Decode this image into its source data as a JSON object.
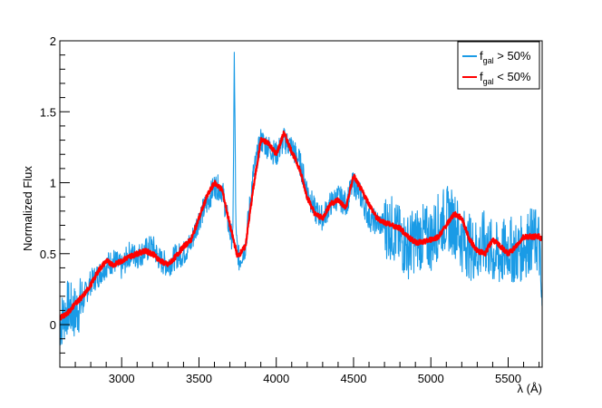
{
  "chart_data": {
    "type": "line",
    "xlabel": "λ (Å)",
    "ylabel": "Normalized Flux",
    "xlim": [
      2600,
      5720
    ],
    "ylim": [
      -0.3,
      2.0
    ],
    "x_ticks": [
      {
        "value": 3000,
        "label": "3000"
      },
      {
        "value": 3500,
        "label": "3500"
      },
      {
        "value": 4000,
        "label": "4000"
      },
      {
        "value": 4500,
        "label": "4500"
      },
      {
        "value": 5000,
        "label": "5000"
      },
      {
        "value": 5500,
        "label": "5500"
      }
    ],
    "y_ticks": [
      {
        "value": 0,
        "label": "0"
      },
      {
        "value": 0.5,
        "label": "0.5"
      },
      {
        "value": 1,
        "label": "1"
      },
      {
        "value": 1.5,
        "label": "1.5"
      },
      {
        "value": 2,
        "label": "2"
      }
    ],
    "grid": false,
    "legend_position": "top-right",
    "series": [
      {
        "label_main": "f",
        "label_sub": "gal",
        "label_rest": " > 50%",
        "color": "#1a9be6",
        "noise": 0.09,
        "x": [
          2600,
          2650,
          2700,
          2750,
          2800,
          2850,
          2900,
          2950,
          3000,
          3050,
          3100,
          3150,
          3200,
          3250,
          3300,
          3350,
          3400,
          3450,
          3500,
          3550,
          3600,
          3650,
          3700,
          3720,
          3728,
          3740,
          3760,
          3800,
          3850,
          3900,
          3950,
          4000,
          4050,
          4100,
          4150,
          4200,
          4250,
          4300,
          4350,
          4400,
          4450,
          4500,
          4550,
          4600,
          4650,
          4700,
          4750,
          4800,
          4850,
          4900,
          4950,
          5000,
          5050,
          5100,
          5150,
          5200,
          5250,
          5300,
          5350,
          5400,
          5450,
          5500,
          5550,
          5600,
          5650,
          5700,
          5720
        ],
        "y": [
          0.0,
          0.12,
          0.08,
          0.18,
          0.3,
          0.35,
          0.42,
          0.45,
          0.4,
          0.5,
          0.48,
          0.52,
          0.55,
          0.45,
          0.42,
          0.48,
          0.5,
          0.58,
          0.75,
          0.85,
          0.98,
          0.95,
          0.65,
          0.6,
          1.95,
          0.6,
          0.45,
          0.55,
          1.05,
          1.3,
          1.25,
          1.2,
          1.3,
          1.25,
          1.15,
          0.95,
          0.8,
          0.75,
          0.85,
          0.9,
          0.85,
          1.0,
          0.9,
          0.75,
          0.72,
          0.7,
          0.68,
          0.6,
          0.55,
          0.6,
          0.62,
          0.6,
          0.7,
          0.75,
          0.72,
          0.6,
          0.55,
          0.52,
          0.58,
          0.5,
          0.48,
          0.55,
          0.5,
          0.55,
          0.6,
          0.58,
          0.05
        ]
      },
      {
        "label_main": "f",
        "label_sub": "gal",
        "label_rest": " < 50%",
        "color": "#ff0000",
        "noise": 0.018,
        "x": [
          2600,
          2650,
          2700,
          2750,
          2800,
          2850,
          2900,
          2950,
          3000,
          3050,
          3100,
          3150,
          3200,
          3250,
          3300,
          3350,
          3400,
          3450,
          3500,
          3550,
          3600,
          3650,
          3700,
          3750,
          3800,
          3850,
          3900,
          3950,
          4000,
          4050,
          4100,
          4150,
          4200,
          4250,
          4300,
          4350,
          4400,
          4450,
          4500,
          4550,
          4600,
          4650,
          4700,
          4750,
          4800,
          4850,
          4900,
          4950,
          5000,
          5050,
          5100,
          5150,
          5200,
          5250,
          5300,
          5350,
          5400,
          5450,
          5500,
          5550,
          5600,
          5650,
          5700,
          5720
        ],
        "y": [
          0.05,
          0.08,
          0.15,
          0.2,
          0.28,
          0.38,
          0.45,
          0.42,
          0.45,
          0.48,
          0.5,
          0.52,
          0.5,
          0.45,
          0.42,
          0.48,
          0.55,
          0.6,
          0.75,
          0.9,
          1.0,
          0.95,
          0.7,
          0.48,
          0.55,
          0.95,
          1.3,
          1.28,
          1.2,
          1.35,
          1.22,
          1.1,
          0.9,
          0.78,
          0.75,
          0.85,
          0.88,
          0.82,
          1.05,
          0.95,
          0.85,
          0.75,
          0.72,
          0.7,
          0.68,
          0.62,
          0.58,
          0.58,
          0.6,
          0.62,
          0.7,
          0.78,
          0.75,
          0.6,
          0.52,
          0.5,
          0.6,
          0.55,
          0.5,
          0.55,
          0.62,
          0.62,
          0.62,
          0.6
        ]
      }
    ]
  }
}
